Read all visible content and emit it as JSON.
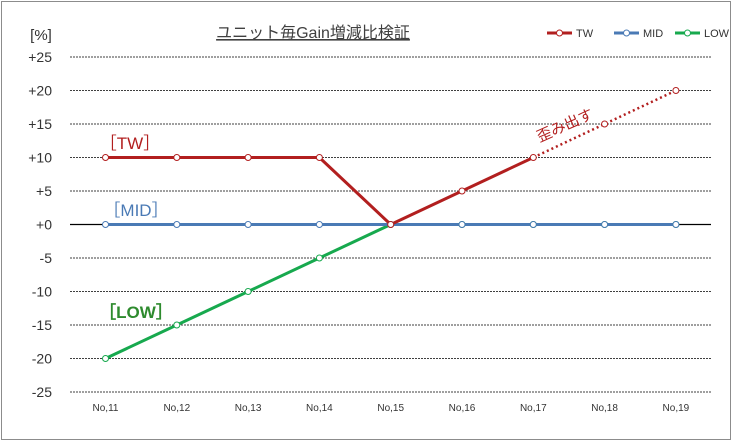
{
  "chart_data": {
    "type": "line",
    "title": "ユニット毎Gain増減比検証",
    "ylabel": "[%]",
    "xlabel": "",
    "categories": [
      "No,11",
      "No,12",
      "No,13",
      "No,14",
      "No,15",
      "No,16",
      "No,17",
      "No,18",
      "No,19"
    ],
    "ylim": [
      -25,
      25
    ],
    "yticks": [
      25,
      20,
      15,
      10,
      5,
      0,
      -5,
      -10,
      -15,
      -20,
      -25
    ],
    "ytick_labels": [
      "+25",
      "+20",
      "+15",
      "+10",
      "+5",
      "+0",
      "-5",
      "-10",
      "-15",
      "-20",
      "-25"
    ],
    "grid": true,
    "legend_position": "top-right",
    "series": [
      {
        "name": "TW",
        "values": [
          10,
          10,
          10,
          10,
          0,
          5,
          10,
          15,
          20
        ],
        "color": "#b21f1f",
        "dashed_from_index": 6
      },
      {
        "name": "MID",
        "values": [
          0,
          0,
          0,
          0,
          0,
          0,
          0,
          0,
          0
        ],
        "color": "#4a7ab5"
      },
      {
        "name": "LOW",
        "values": [
          -20,
          -15,
          -10,
          -5,
          0,
          0,
          0,
          0,
          0
        ],
        "color": "#17a94e"
      }
    ],
    "annotations": [
      {
        "text": "［TW］",
        "color": "#b21f1f",
        "series": "TW"
      },
      {
        "text": "［MID］",
        "color": "#4a7ab5",
        "series": "MID"
      },
      {
        "text": "［LOW］",
        "color": "#2e8b2e",
        "series": "LOW"
      },
      {
        "text": "歪み出す",
        "color": "#b21f1f"
      }
    ]
  }
}
